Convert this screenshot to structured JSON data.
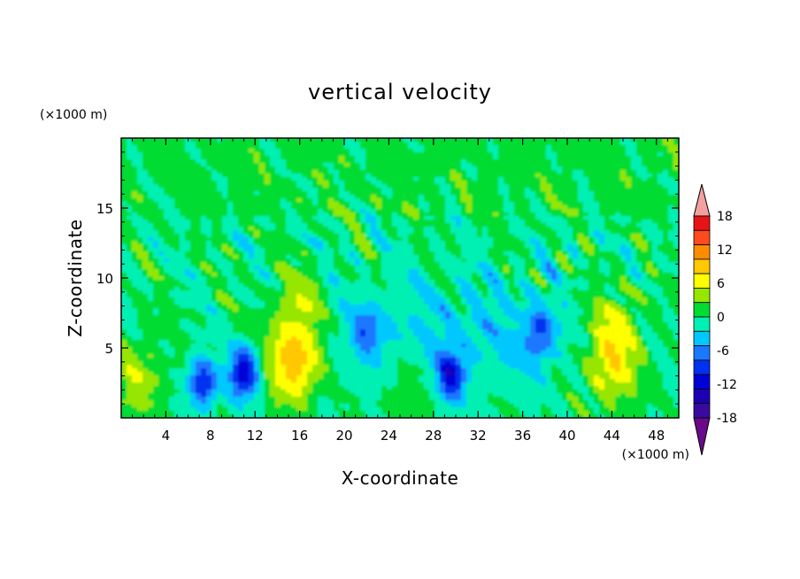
{
  "chart_data": {
    "type": "heatmap",
    "title": "vertical velocity",
    "xlabel": "X-coordinate",
    "ylabel": "Z-coordinate",
    "x_unit": "(×1000 m)",
    "y_unit": "(×1000 m)",
    "xlim": [
      0,
      50
    ],
    "ylim": [
      0,
      20
    ],
    "x_ticks": [
      4,
      8,
      12,
      16,
      20,
      24,
      28,
      32,
      36,
      40,
      44,
      48
    ],
    "y_ticks": [
      5,
      10,
      15
    ],
    "colorbar": {
      "tick_labels": [
        "18",
        "12",
        "6",
        "0",
        "-6",
        "-12",
        "-18"
      ],
      "tick_values": [
        18,
        12,
        6,
        0,
        -6,
        -12,
        -18
      ],
      "levels": [
        -21,
        -18,
        -15,
        -12,
        -9,
        -6,
        -3,
        0,
        3,
        6,
        9,
        12,
        15,
        18,
        21
      ],
      "colors": [
        "#6a0a8a",
        "#3a0a9e",
        "#1c00b4",
        "#0000d8",
        "#0030f0",
        "#1a78ff",
        "#00c8ff",
        "#00f0b4",
        "#00dc30",
        "#96e600",
        "#ffff00",
        "#ffc800",
        "#ff8c00",
        "#ff4a1e",
        "#e61414",
        "#f4a0a0"
      ],
      "extend": "both"
    },
    "features": [
      {
        "kind": "updraft",
        "x": 15.5,
        "z": 4.2,
        "peak": 12
      },
      {
        "kind": "updraft",
        "x": 44.0,
        "z": 4.0,
        "peak": 9
      },
      {
        "kind": "updraft",
        "x": 1.5,
        "z": 2.8,
        "peak": 5
      },
      {
        "kind": "updraft",
        "x": 25.8,
        "z": 1.8,
        "peak": 3
      },
      {
        "kind": "downdraft",
        "x": 7.3,
        "z": 2.5,
        "peak": -12
      },
      {
        "kind": "downdraft",
        "x": 11.0,
        "z": 3.2,
        "peak": -15
      },
      {
        "kind": "downdraft",
        "x": 29.5,
        "z": 3.0,
        "peak": -12
      },
      {
        "kind": "downdraft",
        "x": 22.0,
        "z": 6.2,
        "peak": -6
      },
      {
        "kind": "downdraft",
        "x": 37.5,
        "z": 6.0,
        "peak": -8
      }
    ]
  }
}
